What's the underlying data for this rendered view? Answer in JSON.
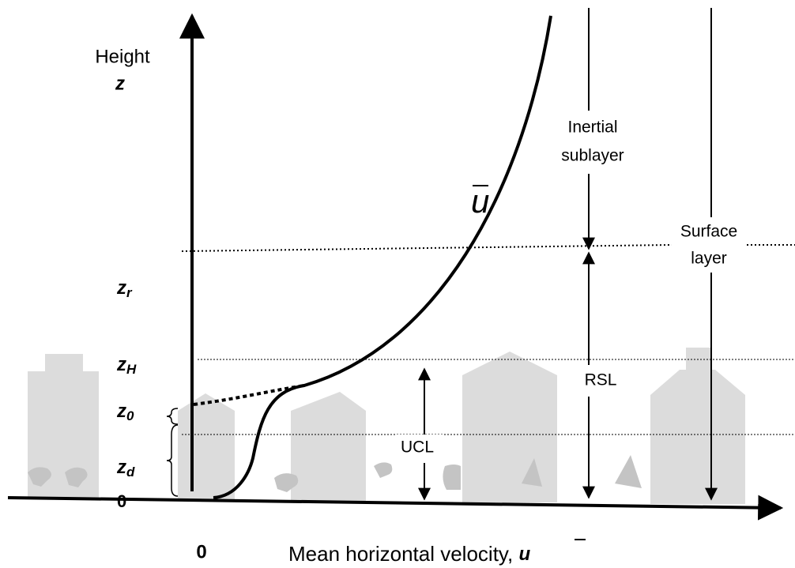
{
  "axes": {
    "y_label": "Height",
    "y_symbol": "z",
    "x_label": "Mean horizontal velocity, ",
    "x_symbol": "u",
    "origin": "0",
    "origin_left": "0"
  },
  "levels": [
    {
      "main": "z",
      "sub": "r"
    },
    {
      "main": "z",
      "sub": "H"
    },
    {
      "main": "z",
      "sub": "0"
    },
    {
      "main": "z",
      "sub": "d"
    }
  ],
  "curve_label": "u",
  "layers": {
    "inertial": [
      "Inertial",
      "sublayer"
    ],
    "surface": [
      "Surface",
      "layer"
    ],
    "rsl": "RSL",
    "ucl": "UCL"
  }
}
